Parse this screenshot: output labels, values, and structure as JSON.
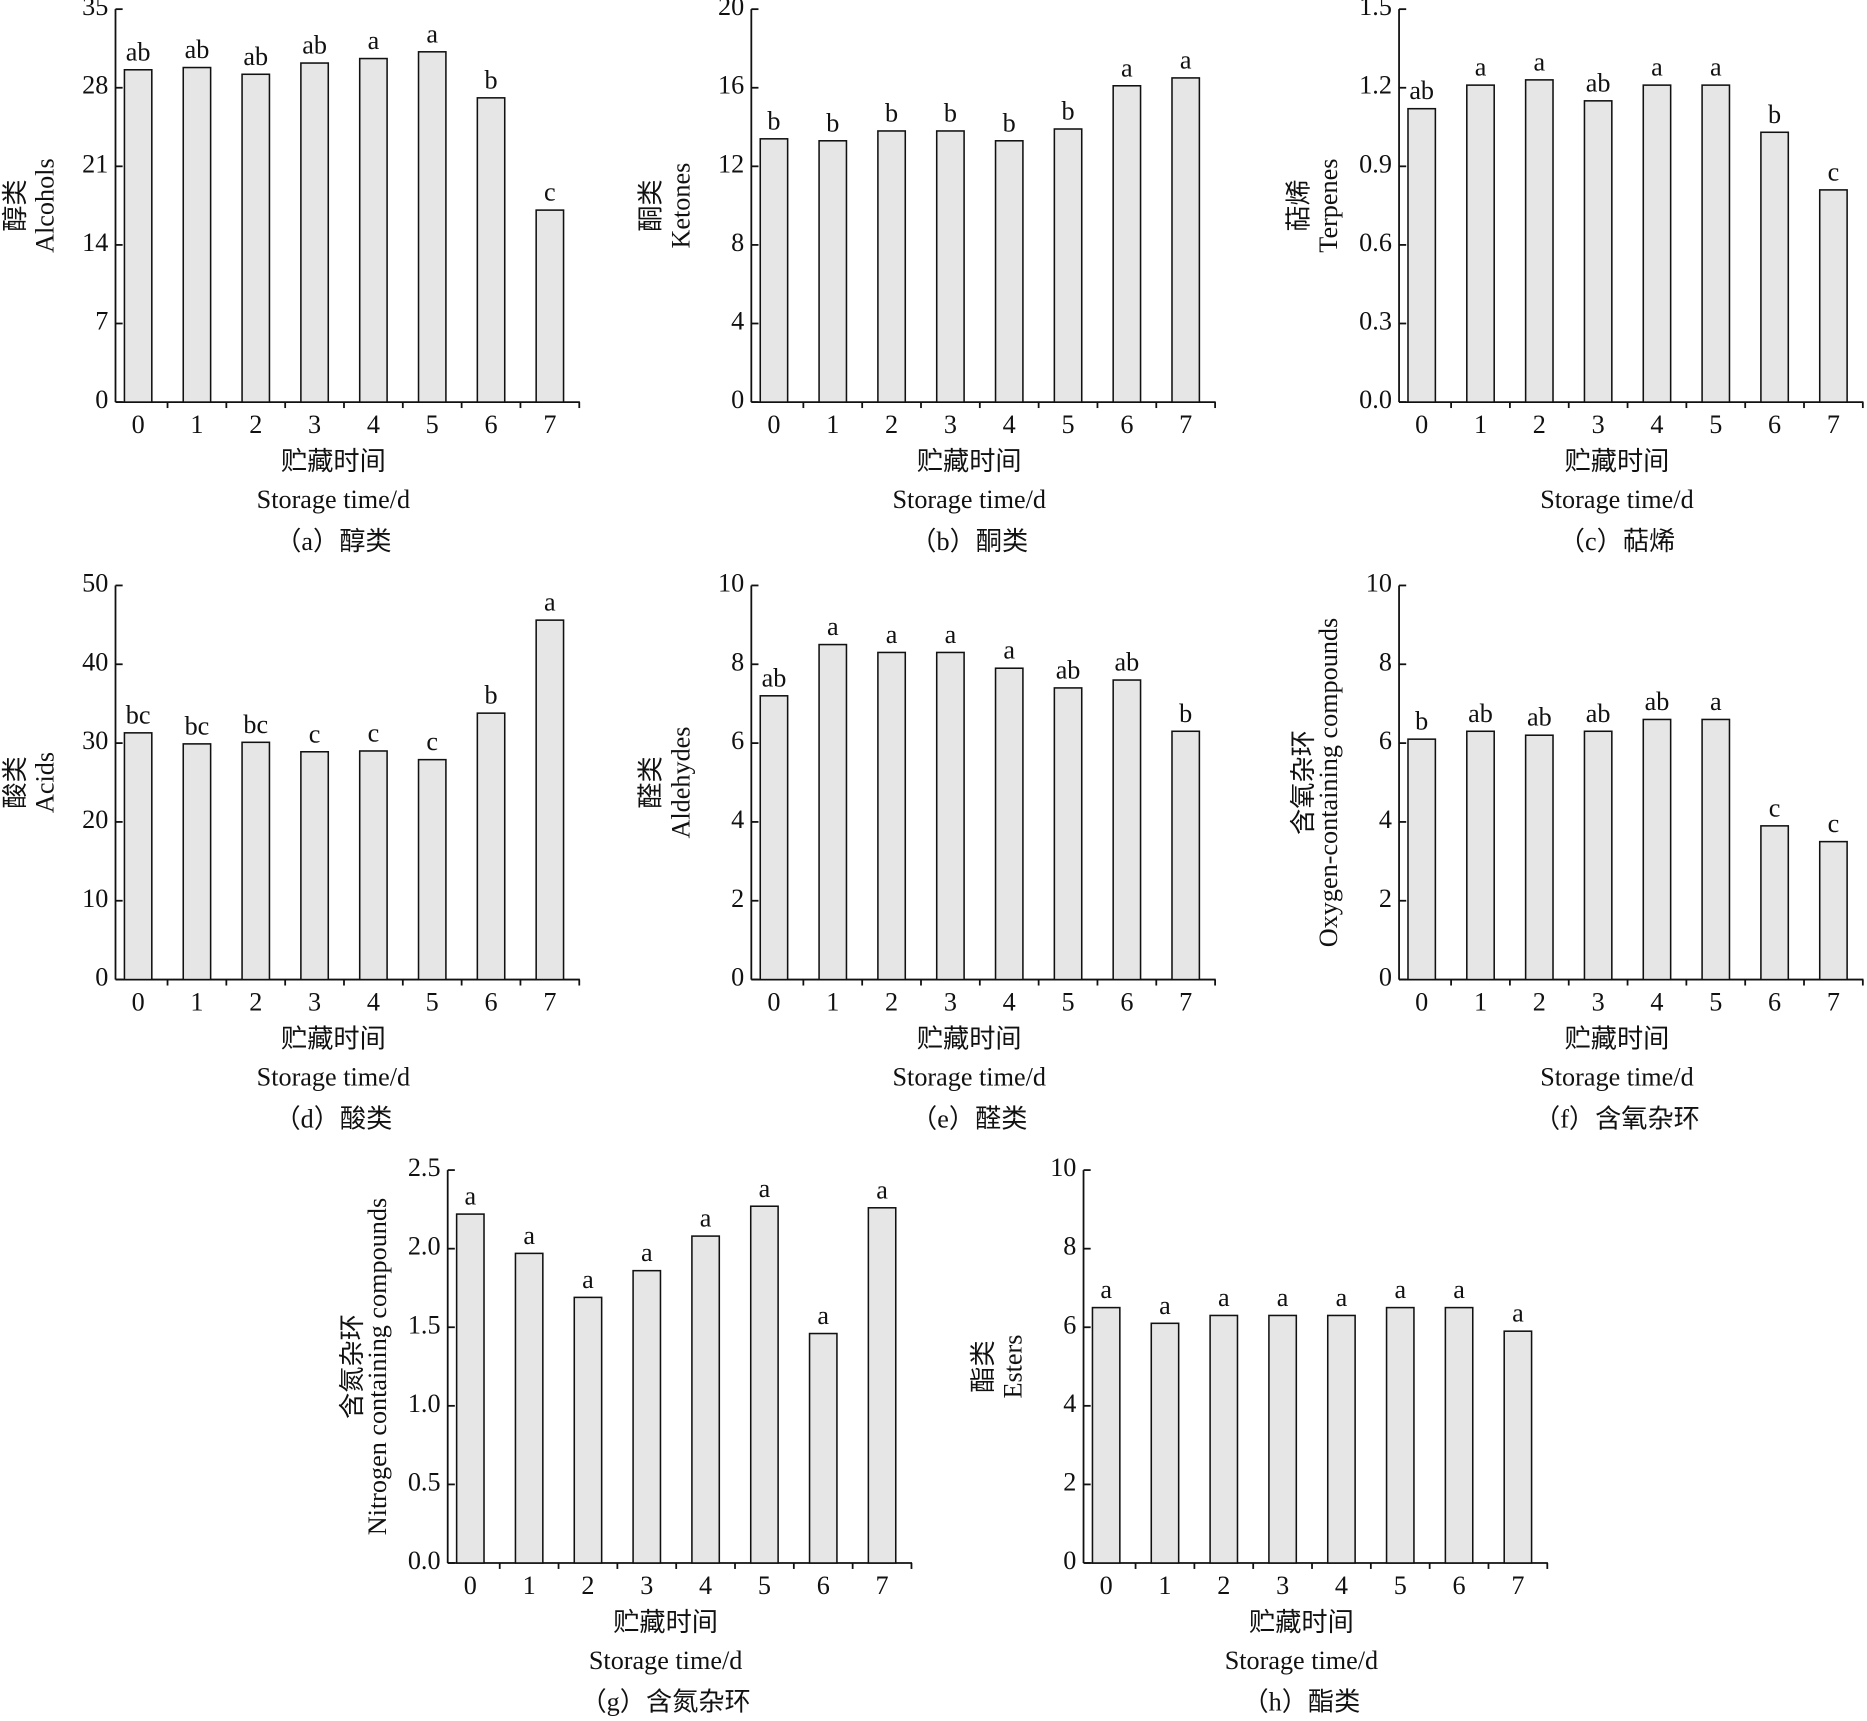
{
  "chart_data": [
    {
      "type": "bar",
      "caption": "（a）醇类",
      "ylabel_zh": "醇类",
      "ylabel_en": "Alcohols",
      "xlabel_zh": "贮藏时间",
      "xlabel_en": "Storage time/d",
      "categories": [
        "0",
        "1",
        "2",
        "3",
        "4",
        "5",
        "6",
        "7"
      ],
      "values": [
        29.6,
        29.8,
        29.2,
        30.2,
        30.6,
        31.2,
        27.1,
        17.1
      ],
      "annotations": [
        "ab",
        "ab",
        "ab",
        "ab",
        "a",
        "a",
        "b",
        "c"
      ],
      "color": "#e6e6e6",
      "ylim": [
        0,
        35
      ],
      "yticks": [
        0,
        7,
        14,
        21,
        28,
        35
      ]
    },
    {
      "type": "bar",
      "caption": "（b）酮类",
      "ylabel_zh": "酮类",
      "ylabel_en": "Ketones",
      "xlabel_zh": "贮藏时间",
      "xlabel_en": "Storage time/d",
      "categories": [
        "0",
        "1",
        "2",
        "3",
        "4",
        "5",
        "6",
        "7"
      ],
      "values": [
        13.4,
        13.3,
        13.8,
        13.8,
        13.3,
        13.9,
        16.1,
        16.5
      ],
      "annotations": [
        "b",
        "b",
        "b",
        "b",
        "b",
        "b",
        "a",
        "a"
      ],
      "color": "#e6e6e6",
      "ylim": [
        0,
        20
      ],
      "yticks": [
        0,
        4,
        8,
        12,
        16,
        20
      ]
    },
    {
      "type": "bar",
      "caption": "（c）萜烯",
      "ylabel_zh": "萜烯",
      "ylabel_en": "Terpenes",
      "xlabel_zh": "贮藏时间",
      "xlabel_en": "Storage time/d",
      "categories": [
        "0",
        "1",
        "2",
        "3",
        "4",
        "5",
        "6",
        "7"
      ],
      "values": [
        1.12,
        1.21,
        1.23,
        1.15,
        1.21,
        1.21,
        1.03,
        0.81
      ],
      "annotations": [
        "ab",
        "a",
        "a",
        "ab",
        "a",
        "a",
        "b",
        "c"
      ],
      "color": "#e6e6e6",
      "ylim": [
        0,
        1.5
      ],
      "yticks": [
        {
          "value": 0,
          "label": "0.0"
        },
        0.3,
        0.6,
        0.9,
        1.2,
        1.5
      ]
    },
    {
      "type": "bar",
      "caption": "（d）酸类",
      "ylabel_zh": "酸类",
      "ylabel_en": "Acids",
      "xlabel_zh": "贮藏时间",
      "xlabel_en": "Storage time/d",
      "categories": [
        "0",
        "1",
        "2",
        "3",
        "4",
        "5",
        "6",
        "7"
      ],
      "values": [
        31.3,
        29.9,
        30.1,
        28.9,
        29.0,
        27.9,
        33.8,
        45.6
      ],
      "annotations": [
        "bc",
        "bc",
        "bc",
        "c",
        "c",
        "c",
        "b",
        "a"
      ],
      "color": "#e6e6e6",
      "ylim": [
        0,
        50
      ],
      "yticks": [
        0,
        10,
        20,
        30,
        40,
        50
      ]
    },
    {
      "type": "bar",
      "caption": "（e）醛类",
      "ylabel_zh": "醛类",
      "ylabel_en": "Aldehydes",
      "xlabel_zh": "贮藏时间",
      "xlabel_en": "Storage time/d",
      "categories": [
        "0",
        "1",
        "2",
        "3",
        "4",
        "5",
        "6",
        "7"
      ],
      "values": [
        7.2,
        8.5,
        8.3,
        8.3,
        7.9,
        7.4,
        7.6,
        6.3
      ],
      "annotations": [
        "ab",
        "a",
        "a",
        "a",
        "a",
        "ab",
        "ab",
        "b"
      ],
      "color": "#e6e6e6",
      "ylim": [
        0,
        10
      ],
      "yticks": [
        0,
        2,
        4,
        6,
        8,
        10
      ]
    },
    {
      "type": "bar",
      "caption": "（f）含氧杂环",
      "ylabel_zh": "含氧杂环",
      "ylabel_en": "Oxygen-containing compounds",
      "xlabel_zh": "贮藏时间",
      "xlabel_en": "Storage time/d",
      "categories": [
        "0",
        "1",
        "2",
        "3",
        "4",
        "5",
        "6",
        "7"
      ],
      "values": [
        6.1,
        6.3,
        6.2,
        6.3,
        6.6,
        6.6,
        3.9,
        3.5
      ],
      "annotations": [
        "b",
        "ab",
        "ab",
        "ab",
        "ab",
        "a",
        "c",
        "c"
      ],
      "color": "#e6e6e6",
      "ylim": [
        0,
        10
      ],
      "yticks": [
        0,
        2,
        4,
        6,
        8,
        10
      ]
    },
    {
      "type": "bar",
      "caption": "（g）含氮杂环",
      "ylabel_zh": "含氮杂环",
      "ylabel_en": "Nitrogen containing compounds",
      "xlabel_zh": "贮藏时间",
      "xlabel_en": "Storage time/d",
      "categories": [
        "0",
        "1",
        "2",
        "3",
        "4",
        "5",
        "6",
        "7"
      ],
      "values": [
        2.22,
        1.97,
        1.69,
        1.86,
        2.08,
        2.27,
        1.46,
        2.26
      ],
      "annotations": [
        "a",
        "a",
        "a",
        "a",
        "a",
        "a",
        "a",
        "a"
      ],
      "color": "#e6e6e6",
      "ylim": [
        0,
        2.5
      ],
      "yticks": [
        {
          "value": 0,
          "label": "0.0"
        },
        0.5,
        {
          "value": 1,
          "label": "1.0"
        },
        1.5,
        {
          "value": 2,
          "label": "2.0"
        },
        2.5
      ]
    },
    {
      "type": "bar",
      "caption": "（h）酯类",
      "ylabel_zh": "酯类",
      "ylabel_en": "Esters",
      "xlabel_zh": "贮藏时间",
      "xlabel_en": "Storage time/d",
      "categories": [
        "0",
        "1",
        "2",
        "3",
        "4",
        "5",
        "6",
        "7"
      ],
      "values": [
        6.5,
        6.1,
        6.3,
        6.3,
        6.3,
        6.5,
        6.5,
        5.9
      ],
      "annotations": [
        "a",
        "a",
        "a",
        "a",
        "a",
        "a",
        "a",
        "a"
      ],
      "color": "#e6e6e6",
      "ylim": [
        0,
        10
      ],
      "yticks": [
        0,
        2,
        4,
        6,
        8,
        10
      ]
    }
  ]
}
